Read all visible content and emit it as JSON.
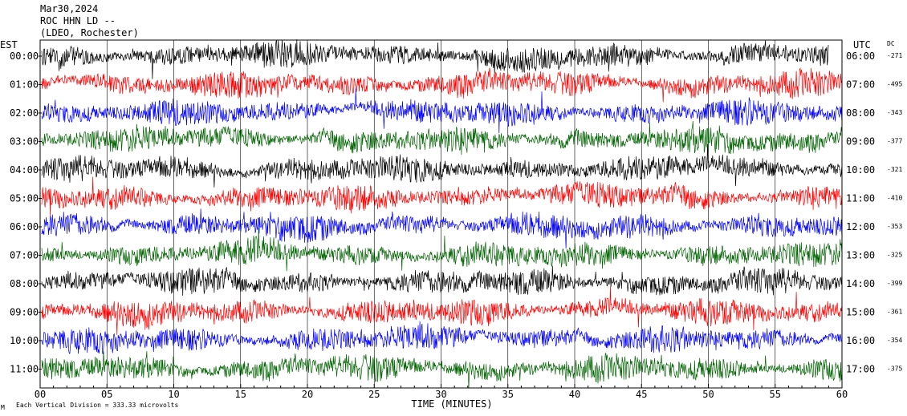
{
  "header": {
    "date": "Mar30,2024",
    "station": "ROC HHN LD --",
    "location": "(LDEO, Rochester)"
  },
  "left_timezone": "EST",
  "right_timezone": "UTC",
  "dc_label": "DC",
  "footer": {
    "scale_note": "Each Vertical Division =  333.33 microvolts",
    "corner_mark": "M"
  },
  "chart_data": {
    "type": "line",
    "xlabel": "TIME (MINUTES)",
    "xlim": [
      0,
      60
    ],
    "x_ticks": [
      "00",
      "05",
      "10",
      "15",
      "20",
      "25",
      "30",
      "35",
      "40",
      "45",
      "50",
      "55",
      "60"
    ],
    "trace_colors": [
      "#000000",
      "#ff0000",
      "#0000ff",
      "#006400"
    ],
    "traces": [
      {
        "left_label": "00:00",
        "right_label": "06:00",
        "dc": "-271",
        "color": "#000000"
      },
      {
        "left_label": "01:00",
        "right_label": "07:00",
        "dc": "-495",
        "color": "#ff0000"
      },
      {
        "left_label": "02:00",
        "right_label": "08:00",
        "dc": "-343",
        "color": "#0000ff"
      },
      {
        "left_label": "03:00",
        "right_label": "09:00",
        "dc": "-377",
        "color": "#006400"
      },
      {
        "left_label": "04:00",
        "right_label": "10:00",
        "dc": "-321",
        "color": "#000000"
      },
      {
        "left_label": "05:00",
        "right_label": "11:00",
        "dc": "-410",
        "color": "#ff0000"
      },
      {
        "left_label": "06:00",
        "right_label": "12:00",
        "dc": "-353",
        "color": "#0000ff"
      },
      {
        "left_label": "07:00",
        "right_label": "13:00",
        "dc": "-325",
        "color": "#006400"
      },
      {
        "left_label": "08:00",
        "right_label": "14:00",
        "dc": "-399",
        "color": "#000000"
      },
      {
        "left_label": "09:00",
        "right_label": "15:00",
        "dc": "-361",
        "color": "#ff0000"
      },
      {
        "left_label": "10:00",
        "right_label": "16:00",
        "dc": "-354",
        "color": "#0000ff"
      },
      {
        "left_label": "11:00",
        "right_label": "17:00",
        "dc": "-375",
        "color": "#006400"
      }
    ],
    "first_trace_end_minute": 59
  }
}
